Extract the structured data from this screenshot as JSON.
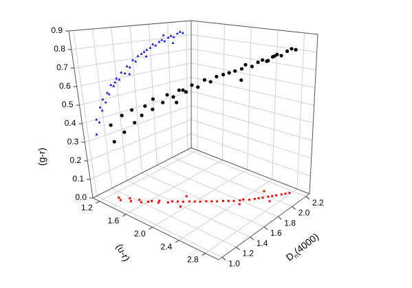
{
  "chart_data": {
    "type": "scatter3d",
    "x_label": "(u-r)",
    "y_label_parts": [
      "D",
      "n",
      "(4000)"
    ],
    "z_label": "(g-r)",
    "xlim": [
      1.1,
      3.0
    ],
    "xticks": [
      1.2,
      1.6,
      {
        "value": 2,
        "label": "2.0"
      },
      2.4,
      2.8
    ],
    "ylim": [
      0.95,
      2.25
    ],
    "yticks": [
      {
        "value": 1,
        "label": "1.0"
      },
      1.2,
      1.4,
      1.6,
      1.8,
      {
        "value": 2,
        "label": "2.0"
      },
      2.2
    ],
    "zlim": [
      0,
      0.9
    ],
    "zticks": [
      {
        "value": 0,
        "label": "0.0"
      },
      0.1,
      0.2,
      0.3,
      0.4,
      0.5,
      0.6,
      0.7,
      0.8,
      0.9
    ],
    "grid": true,
    "colors": {
      "points": "#000000",
      "wall_projection": "#0000ff",
      "floor_projection": "#ff0000"
    },
    "points": {
      "x": [
        1.35,
        1.3,
        1.45,
        1.4,
        1.55,
        1.5,
        1.6,
        1.62,
        1.7,
        1.68,
        1.78,
        1.8,
        1.85,
        1.9,
        1.95,
        2.0,
        2.05,
        2.1,
        2.15,
        2.2,
        2.25,
        2.3,
        2.35,
        2.4,
        2.42,
        2.48,
        2.52,
        2.55,
        2.58,
        2.62,
        2.65,
        2.68,
        2.72,
        2.75,
        2.78,
        2.5,
        2.7,
        2.45,
        1.85,
        1.95
      ],
      "y": [
        1.1,
        1.12,
        1.15,
        1.18,
        1.2,
        1.22,
        1.25,
        1.28,
        1.3,
        1.33,
        1.36,
        1.4,
        1.43,
        1.46,
        1.5,
        1.53,
        1.56,
        1.6,
        1.63,
        1.66,
        1.7,
        1.73,
        1.76,
        1.8,
        1.83,
        1.86,
        1.9,
        1.93,
        1.96,
        2.0,
        2.03,
        2.06,
        2.1,
        2.13,
        2.16,
        2.05,
        1.95,
        1.75,
        1.55,
        1.38
      ],
      "z": [
        0.32,
        0.4,
        0.38,
        0.46,
        0.44,
        0.5,
        0.48,
        0.53,
        0.52,
        0.57,
        0.56,
        0.6,
        0.59,
        0.63,
        0.62,
        0.66,
        0.65,
        0.69,
        0.68,
        0.71,
        0.72,
        0.73,
        0.74,
        0.75,
        0.77,
        0.76,
        0.78,
        0.79,
        0.78,
        0.8,
        0.81,
        0.8,
        0.82,
        0.83,
        0.82,
        0.76,
        0.82,
        0.7,
        0.61,
        0.58
      ]
    }
  }
}
